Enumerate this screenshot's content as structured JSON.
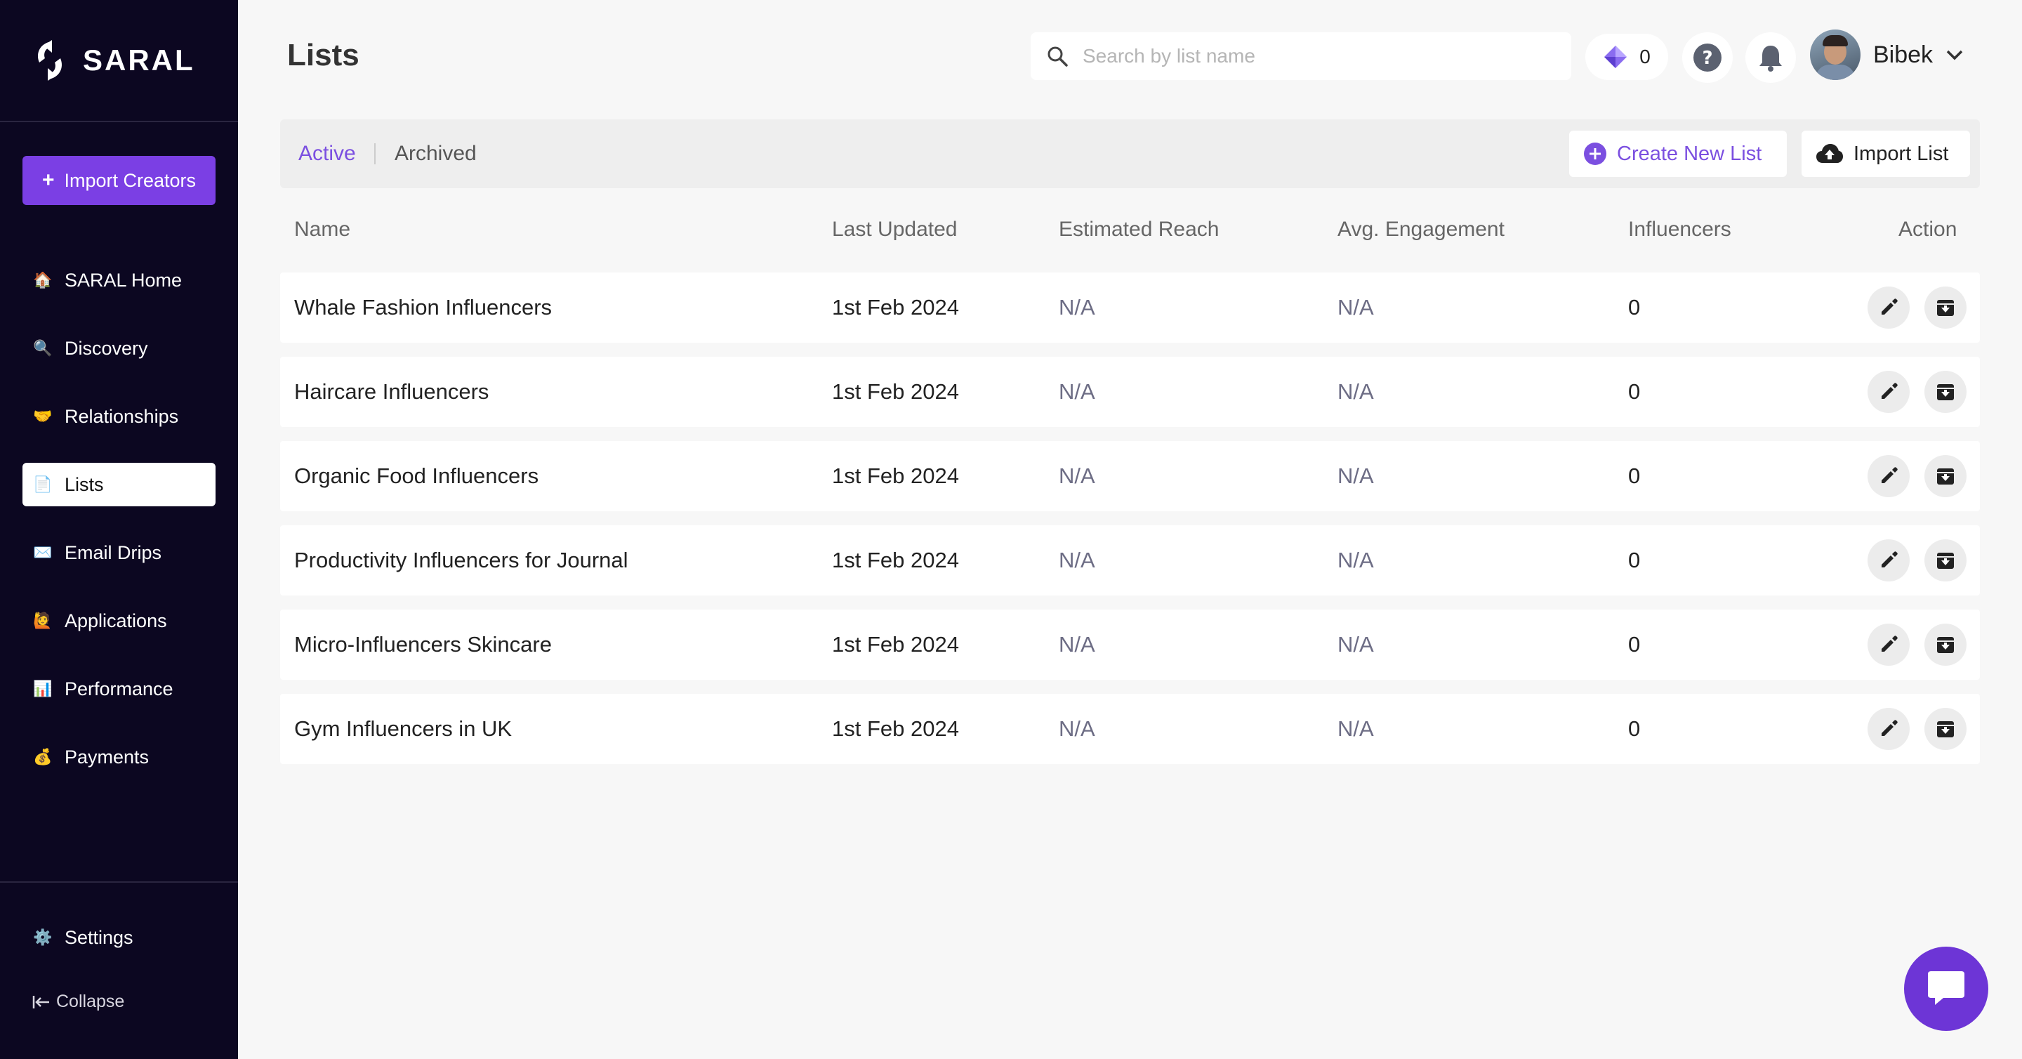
{
  "brand": {
    "name": "SARAL"
  },
  "sidebar": {
    "import_button": "Import Creators",
    "items": [
      {
        "label": "SARAL Home",
        "icon": "house-icon",
        "glyph": "🏠"
      },
      {
        "label": "Discovery",
        "icon": "magnifier-icon",
        "glyph": "🔍"
      },
      {
        "label": "Relationships",
        "icon": "handshake-icon",
        "glyph": "🤝"
      },
      {
        "label": "Lists",
        "icon": "page-icon",
        "glyph": "📄"
      },
      {
        "label": "Email Drips",
        "icon": "envelope-icon",
        "glyph": "✉️"
      },
      {
        "label": "Applications",
        "icon": "raised-hand-icon",
        "glyph": "🙋"
      },
      {
        "label": "Performance",
        "icon": "bar-chart-icon",
        "glyph": "📊"
      },
      {
        "label": "Payments",
        "icon": "money-bag-icon",
        "glyph": "💰"
      }
    ],
    "active": "Lists",
    "settings": {
      "label": "Settings",
      "glyph": "⚙️"
    },
    "collapse": "Collapse"
  },
  "header": {
    "title": "Lists",
    "search_placeholder": "Search by list name",
    "credits": "0",
    "user_name": "Bibek"
  },
  "toolbar": {
    "tab_active": "Active",
    "tab_archived": "Archived",
    "create_button": "Create New List",
    "import_button": "Import List"
  },
  "table": {
    "columns": [
      "Name",
      "Last Updated",
      "Estimated Reach",
      "Avg. Engagement",
      "Influencers",
      "Action"
    ],
    "rows": [
      {
        "name": "Whale Fashion Influencers",
        "updated": "1st Feb 2024",
        "reach": "N/A",
        "engagement": "N/A",
        "influencers": "0"
      },
      {
        "name": "Haircare Influencers",
        "updated": "1st Feb 2024",
        "reach": "N/A",
        "engagement": "N/A",
        "influencers": "0"
      },
      {
        "name": "Organic Food Influencers",
        "updated": "1st Feb 2024",
        "reach": "N/A",
        "engagement": "N/A",
        "influencers": "0"
      },
      {
        "name": "Productivity Influencers for Journal",
        "updated": "1st Feb 2024",
        "reach": "N/A",
        "engagement": "N/A",
        "influencers": "0"
      },
      {
        "name": "Micro-Influencers Skincare",
        "updated": "1st Feb 2024",
        "reach": "N/A",
        "engagement": "N/A",
        "influencers": "0"
      },
      {
        "name": "Gym Influencers in UK",
        "updated": "1st Feb 2024",
        "reach": "N/A",
        "engagement": "N/A",
        "influencers": "0"
      }
    ]
  },
  "colors": {
    "accent": "#7b3fe4",
    "sidebar_bg": "#0c0721",
    "chat": "#6d35d6"
  }
}
